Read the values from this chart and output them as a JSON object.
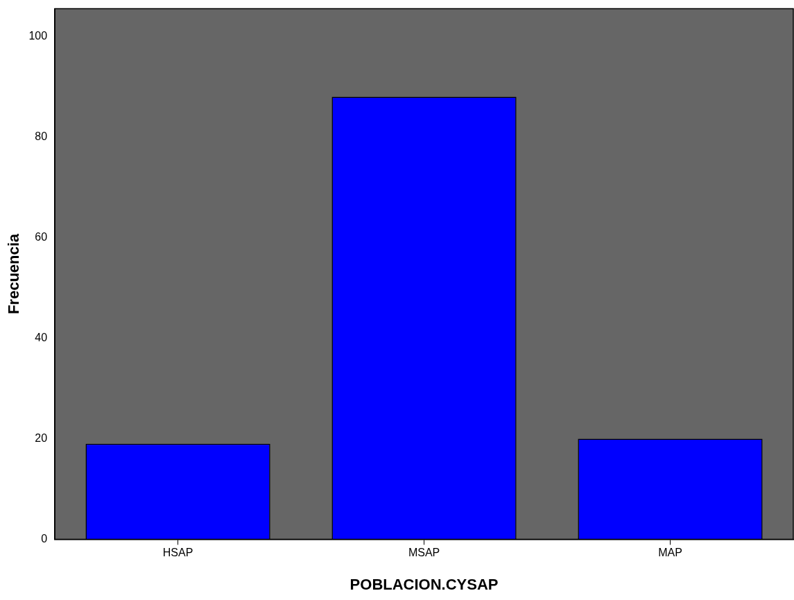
{
  "chart_data": {
    "type": "bar",
    "xlabel": "POBLACION.CYSAP",
    "ylabel": "Frecuencia",
    "categories": [
      "HSAP",
      "MSAP",
      "MAP"
    ],
    "values": [
      19,
      88,
      20
    ],
    "color": "#0000ff",
    "ylim": [
      0,
      105.5
    ],
    "yticks": [
      0,
      20,
      40,
      60,
      80,
      100
    ],
    "grid": false,
    "legend": false
  }
}
